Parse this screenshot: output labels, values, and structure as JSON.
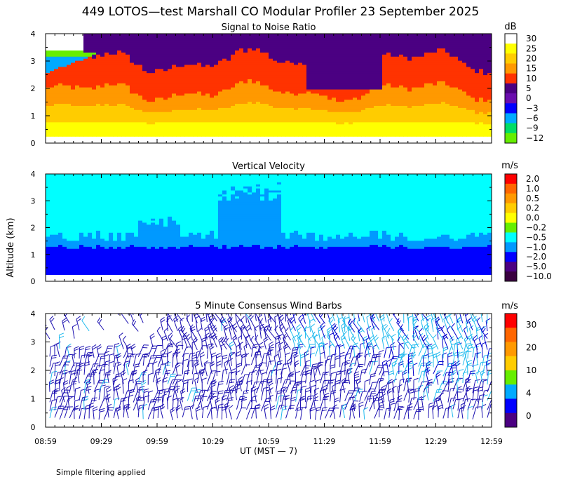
{
  "title": "449 LOTOS—test Marshall CO Modular Profiler 23 September 2025",
  "y_axis_label": "Altitude (km)",
  "x_axis_label": "UT  (MST — 7)",
  "footnote": "Simple filtering applied",
  "chart_data": [
    {
      "type": "heatmap",
      "title": "Signal to Noise Ratio",
      "unit": "dB",
      "x_ticks": [
        "08:59",
        "09:29",
        "09:59",
        "10:29",
        "10:59",
        "11:29",
        "11:59",
        "12:29",
        "12:59"
      ],
      "y_ticks": [
        "0",
        "1",
        "2",
        "3",
        "4"
      ],
      "ylim": [
        0,
        4
      ],
      "data_altitude_range_km": [
        0.25,
        4.0
      ],
      "colorbar": {
        "labels": [
          "30",
          "25",
          "20",
          "15",
          "10",
          "5",
          "0",
          "−3",
          "−6",
          "−9",
          "−12"
        ],
        "colors": [
          "#ffffff",
          "#ffff00",
          "#ffcc00",
          "#ff9900",
          "#ff3300",
          "#4b0082",
          "#6a0dad",
          "#0000ff",
          "#00aaff",
          "#00dd66",
          "#66ee00"
        ]
      },
      "description_levels_dB": {
        "lower_layer_0_to_1km": 25,
        "middle_1_to_2km": 15,
        "upper_2_to_4km": 5
      }
    },
    {
      "type": "heatmap",
      "title": "Vertical Velocity",
      "unit": "m/s",
      "x_ticks": [
        "08:59",
        "09:29",
        "09:59",
        "10:29",
        "10:59",
        "11:29",
        "11:59",
        "12:29",
        "12:59"
      ],
      "y_ticks": [
        "0",
        "1",
        "2",
        "3",
        "4"
      ],
      "ylim": [
        0,
        4
      ],
      "colorbar": {
        "labels": [
          "2.0",
          "1.0",
          "0.5",
          "0.2",
          "0.0",
          "−0.2",
          "−0.5",
          "−1.0",
          "−2.0",
          "−5.0",
          "−10.0"
        ],
        "colors": [
          "#ff0000",
          "#ff6600",
          "#ff9900",
          "#ffcc00",
          "#ffff00",
          "#66ee00",
          "#00ffff",
          "#0099ff",
          "#0000ff",
          "#4b0082",
          "#3a0040"
        ]
      },
      "description_levels_m_s": {
        "below_1_3km": -2.0,
        "1_3_to_1_7km": -1.0,
        "above_1_7km": -0.5
      }
    },
    {
      "type": "scatter",
      "title": "5 Minute Consensus Wind Barbs",
      "unit": "m/s",
      "x_ticks": [
        "08:59",
        "09:29",
        "09:59",
        "10:29",
        "10:59",
        "11:29",
        "11:59",
        "12:29",
        "12:59"
      ],
      "y_ticks": [
        "0",
        "1",
        "2",
        "3",
        "4"
      ],
      "ylim": [
        0,
        4
      ],
      "colorbar": {
        "labels": [
          "30",
          "20",
          "10",
          "4",
          "0"
        ],
        "colors": [
          "#ff0000",
          "#ff6600",
          "#ff9900",
          "#ffcc00",
          "#66ee00",
          "#00aaff",
          "#0000ff",
          "#4b0082"
        ]
      }
    }
  ]
}
